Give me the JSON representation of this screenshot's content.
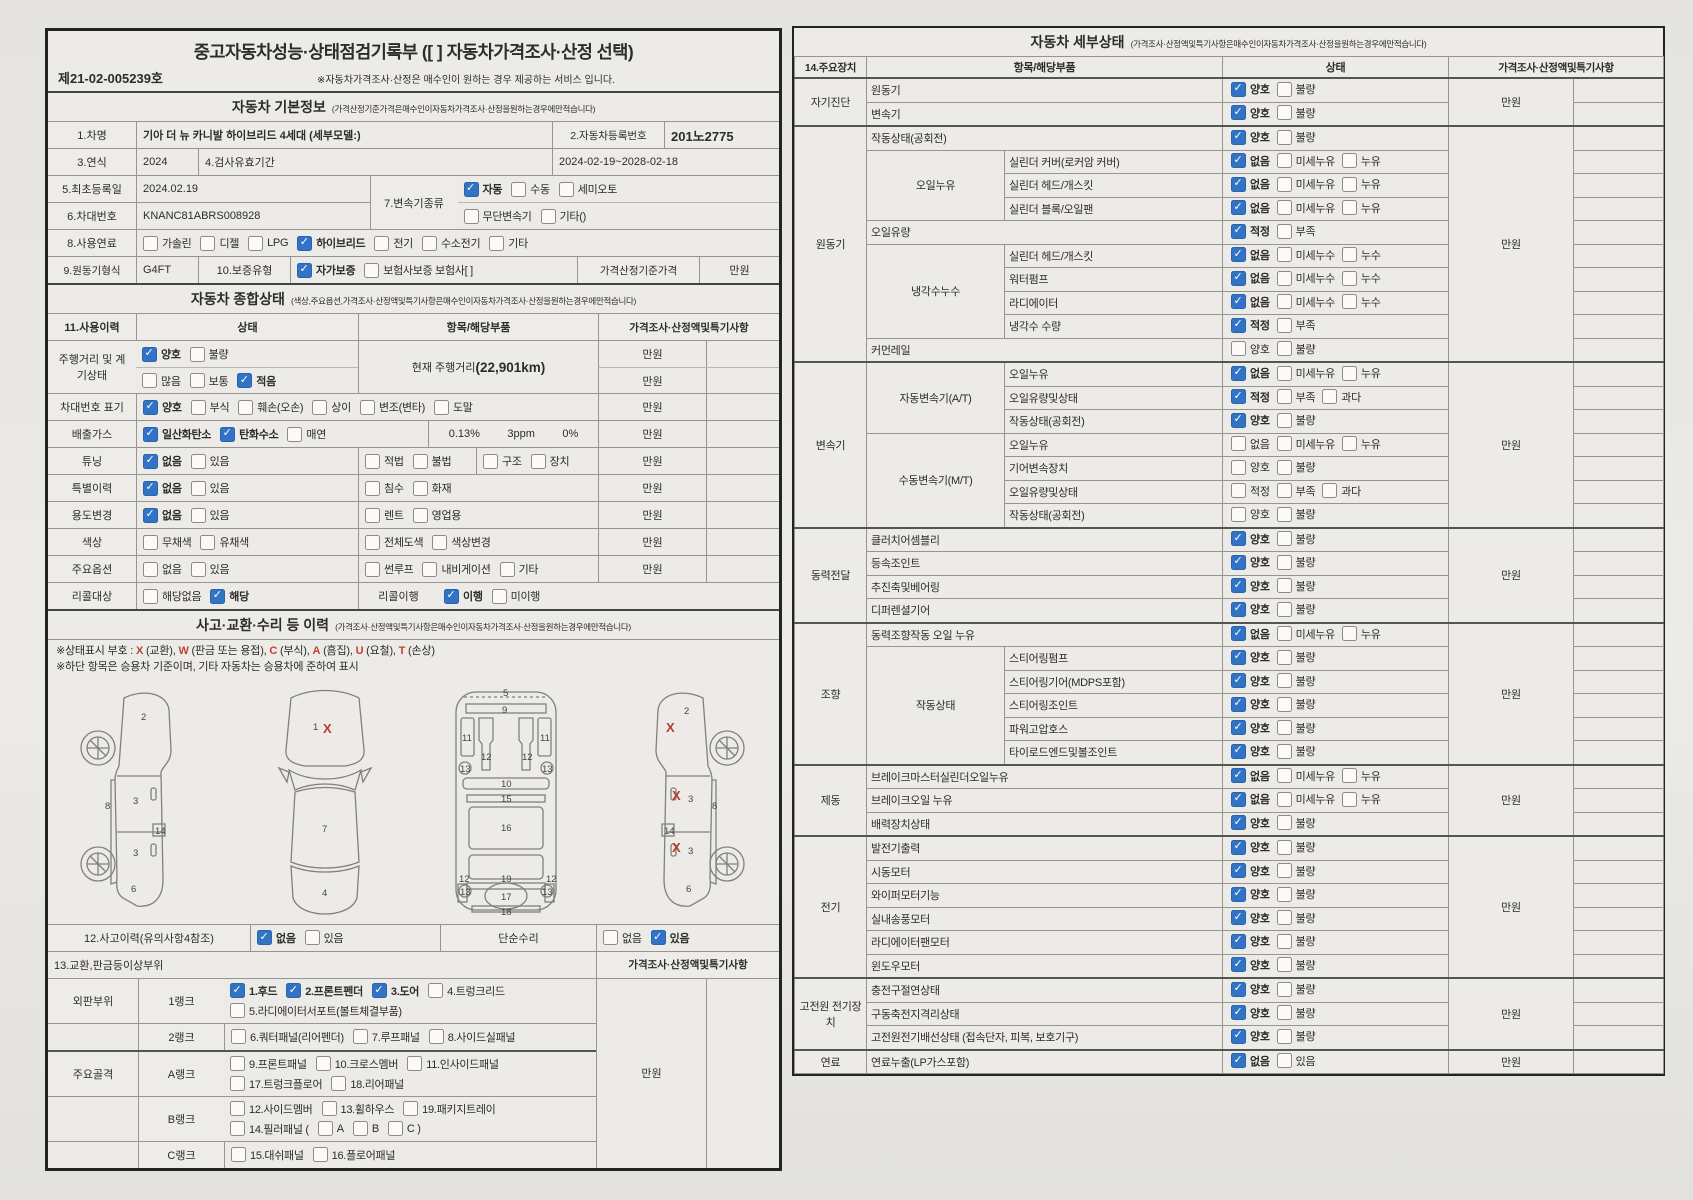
{
  "units": {
    "manwon": "만원"
  },
  "doc": {
    "title": "중고자동차성능·상태점검기록부 ([ ] 자동차가격조사·산정 선택)",
    "doc_no": "제21-02-005239호",
    "service_note": "※자동차가격조사·산정은 매수인이 원하는 경우 제공하는 서비스 입니다."
  },
  "basic": {
    "title": "자동차 기본정보",
    "note": "(가격산정기준가격은매수인이자동차가격조사·산정을원하는경우에만적습니다)",
    "car_name_label": "1.차명",
    "car_name": "기아 더 뉴 카니발 하이브리드 4세대 (세부모델:)",
    "reg_label": "2.자동차등록번호",
    "reg_no": "201노2775",
    "year_label": "3.연식",
    "year": "2024",
    "insp_label": "4.검사유효기간",
    "insp_value": "2024-02-19~2028-02-18",
    "first_label": "5.최초등록일",
    "first_date": "2024.02.19",
    "vin_label": "6.차대번호",
    "vin": "KNANC81ABRS008928",
    "trans_label": "7.변속기종류",
    "trans_opts1": [
      [
        "자동",
        1
      ],
      [
        "수동",
        0
      ],
      [
        "세미오토",
        0
      ]
    ],
    "trans_opts2": [
      [
        "무단변속기",
        0
      ],
      [
        "기타()",
        0
      ]
    ],
    "fuel_label": "8.사용연료",
    "fuel_opts": [
      [
        "가솔린",
        0
      ],
      [
        "디젤",
        0
      ],
      [
        "LPG",
        0
      ],
      [
        "하이브리드",
        1
      ],
      [
        "전기",
        0
      ],
      [
        "수소전기",
        0
      ],
      [
        "기타",
        0
      ]
    ],
    "engine_label": "9.원동기형식",
    "engine_type": "G4FT",
    "warranty_label": "10.보증유형",
    "warranty_opts": [
      [
        "자가보증",
        1
      ],
      [
        "보험사보증 보험사[ ]",
        0
      ]
    ],
    "price_label": "가격산정기준가격"
  },
  "overall": {
    "title": "자동차 종합상태",
    "note": "(색상,주요옵션,가격조사·산정액및특기사항은매수인이자동차가격조사·산정을원하는경우에만적습니다)",
    "col_usage": "11.사용이력",
    "col_state": "상태",
    "col_item": "항목/해당부품",
    "col_price": "가격조사·산정액및특기사항",
    "mileage_label": "주행거리 및 계기상태",
    "mileage_opts1": [
      [
        "양호",
        1
      ],
      [
        "불량",
        0
      ]
    ],
    "mileage_opts2": [
      [
        "많음",
        0
      ],
      [
        "보통",
        0
      ],
      [
        "적음",
        1
      ]
    ],
    "mileage_item_label": "현재 주행거리",
    "mileage_value": "(22,901km)",
    "vinmark_label": "차대번호 표기",
    "vinmark_opts": [
      [
        "양호",
        1
      ],
      [
        "부식",
        0
      ],
      [
        "훼손(오손)",
        0
      ],
      [
        "상이",
        0
      ],
      [
        "변조(변타)",
        0
      ],
      [
        "도말",
        0
      ]
    ],
    "emission_label": "배출가스",
    "emission_opts": [
      [
        "일산화탄소",
        1
      ],
      [
        "탄화수소",
        1
      ],
      [
        "매연",
        0
      ]
    ],
    "emission_co": "0.13%",
    "emission_hc": "3ppm",
    "emission_smoke": "0%",
    "tuning_label": "튜닝",
    "tuning_opts": [
      [
        "없음",
        1
      ],
      [
        "있음",
        0
      ]
    ],
    "tuning_opts2": [
      [
        "적법",
        0
      ],
      [
        "불법",
        0
      ]
    ],
    "tuning_opts3": [
      [
        "구조",
        0
      ],
      [
        "장치",
        0
      ]
    ],
    "special_label": "특별이력",
    "special_opts": [
      [
        "없음",
        1
      ],
      [
        "있음",
        0
      ]
    ],
    "special_opts2": [
      [
        "침수",
        0
      ],
      [
        "화재",
        0
      ]
    ],
    "usage_label": "용도변경",
    "usage_opts": [
      [
        "없음",
        1
      ],
      [
        "있음",
        0
      ]
    ],
    "usage_opts2": [
      [
        "렌트",
        0
      ],
      [
        "영업용",
        0
      ]
    ],
    "color_label": "색상",
    "color_opts": [
      [
        "무채색",
        0
      ],
      [
        "유채색",
        0
      ]
    ],
    "color_opts2": [
      [
        "전체도색",
        0
      ],
      [
        "색상변경",
        0
      ]
    ],
    "option_label": "주요옵션",
    "option_opts": [
      [
        "없음",
        0
      ],
      [
        "있음",
        0
      ]
    ],
    "option_opts2": [
      [
        "썬루프",
        0
      ],
      [
        "내비게이션",
        0
      ],
      [
        "기타",
        0
      ]
    ],
    "recall_label": "리콜대상",
    "recall_opts": [
      [
        "해당없음",
        0
      ],
      [
        "해당",
        1
      ]
    ],
    "recall_exec_label": "리콜이행",
    "recall_exec_opts": [
      [
        "이행",
        1
      ],
      [
        "미이행",
        0
      ]
    ]
  },
  "accident": {
    "title": "사고·교환·수리 등 이력",
    "note": "(가격조사·산정액및특기사항은매수인이자동차가격조사·산정을원하는경우에만적습니다)",
    "legend": [
      [
        "※상태표시 부호 : ",
        0
      ],
      [
        "X",
        1
      ],
      [
        " (교환), ",
        0
      ],
      [
        "W",
        1
      ],
      [
        " (판금 또는 용접), ",
        0
      ],
      [
        "C",
        1
      ],
      [
        " (부식), ",
        0
      ],
      [
        "A",
        1
      ],
      [
        " (흠집), ",
        0
      ],
      [
        "U",
        1
      ],
      [
        " (요철), ",
        0
      ],
      [
        "T",
        1
      ],
      [
        " (손상)",
        0
      ]
    ],
    "legend2": "※하단 항목은 승용차 기준이며, 기타 자동차는 승용차에 준하여 표시",
    "diagrams": {
      "side_left": {
        "n2": "2",
        "n8": "8",
        "n3a": "3",
        "n14": "14",
        "n3b": "3",
        "n6": "6"
      },
      "top": {
        "n1": "1",
        "x": "X",
        "n7": "7",
        "n4": "4"
      },
      "bottom": {
        "n5": "5",
        "n9": "9",
        "n11a": "11",
        "n11b": "11",
        "n12a": "12",
        "n12b": "12",
        "n13a": "13",
        "n13b": "13",
        "n10": "10",
        "n15": "15",
        "n16": "16",
        "n19": "19",
        "n13c": "13",
        "n13d": "13",
        "n17": "17",
        "n12c": "12",
        "n12d": "12",
        "n18": "18"
      },
      "side_right": {
        "n2": "2",
        "x1": "X",
        "x2": "X",
        "n3a": "3",
        "n14": "14",
        "x3": "X",
        "n3b": "3",
        "n8": "8",
        "n6": "6"
      }
    },
    "accident_label": "12.사고이력(유의사항4참조)",
    "accident_opts": [
      [
        "없음",
        1
      ],
      [
        "있음",
        0
      ]
    ],
    "repair_label": "단순수리",
    "repair_opts": [
      [
        "없음",
        0
      ],
      [
        "있음",
        1
      ]
    ],
    "exchange_label": "13.교환,판금등이상부위",
    "price_header": "가격조사·산정액및특기사항",
    "outer_label": "외판부위",
    "frame_label": "주요골격",
    "rank1_label": "1랭크",
    "rank1_opts": [
      [
        "1.후드",
        1
      ],
      [
        "2.프론트펜더",
        1
      ],
      [
        "3.도어",
        1
      ],
      [
        "4.트렁크리드",
        0
      ]
    ],
    "rank1_opts2": [
      [
        "5.라디에이터서포트(볼트체결부품)",
        0
      ]
    ],
    "rank2_label": "2랭크",
    "rank2_opts": [
      [
        "6.쿼터패널(리어펜더)",
        0
      ],
      [
        "7.루프패널",
        0
      ],
      [
        "8.사이드실패널",
        0
      ]
    ],
    "rankA_label": "A랭크",
    "rankA_opts": [
      [
        "9.프론트패널",
        0
      ],
      [
        "10.크로스멤버",
        0
      ],
      [
        "11.인사이드패널",
        0
      ]
    ],
    "rankA_opts2": [
      [
        "17.트렁크플로어",
        0
      ],
      [
        "18.리어패널",
        0
      ]
    ],
    "rankB_label": "B랭크",
    "rankB_opts": [
      [
        "12.사이드멤버",
        0
      ],
      [
        "13.휠하우스",
        0
      ],
      [
        "19.패키지트레이",
        0
      ]
    ],
    "rankB_opts2": [
      [
        "14.필러패널 (",
        0
      ],
      [
        "A",
        0
      ],
      [
        "B",
        0
      ],
      [
        "C )",
        0
      ]
    ],
    "rankC_label": "C랭크",
    "rankC_opts": [
      [
        "15.대쉬패널",
        0
      ],
      [
        "16.플로어패널",
        0
      ]
    ]
  },
  "detail": {
    "title": "자동차 세부상태",
    "note": "(가격조사·산정액및특기사항은매수인이자동차가격조사·산정을원하는경우에만적습니다)",
    "col_device": "14.주요장치",
    "col_item": "항목/해당부품",
    "col_state": "상태",
    "col_price": "가격조사·산정액및특기사항",
    "sections": [
      {
        "group": "자기진단",
        "unit": "만원",
        "rows": [
          [
            "",
            "원동기",
            [
              [
                "양호",
                1
              ],
              [
                "불량",
                0
              ]
            ]
          ],
          [
            "",
            "변속기",
            [
              [
                "양호",
                1
              ],
              [
                "불량",
                0
              ]
            ]
          ]
        ]
      },
      {
        "group": "원동기",
        "unit": "만원",
        "rows": [
          [
            "",
            "작동상태(공회전)",
            [
              [
                "양호",
                1
              ],
              [
                "불량",
                0
              ]
            ]
          ],
          [
            "오일누유",
            "실린더 커버(로커암 커버)",
            [
              [
                "없음",
                1
              ],
              [
                "미세누유",
                0
              ],
              [
                "누유",
                0
              ]
            ]
          ],
          [
            "오일누유",
            "실린더 헤드/개스킷",
            [
              [
                "없음",
                1
              ],
              [
                "미세누유",
                0
              ],
              [
                "누유",
                0
              ]
            ]
          ],
          [
            "오일누유",
            "실린더 블록/오일팬",
            [
              [
                "없음",
                1
              ],
              [
                "미세누유",
                0
              ],
              [
                "누유",
                0
              ]
            ]
          ],
          [
            "",
            "오일유량",
            [
              [
                "적정",
                1
              ],
              [
                "부족",
                0
              ]
            ]
          ],
          [
            "냉각수누수",
            "실린더 헤드/개스킷",
            [
              [
                "없음",
                1
              ],
              [
                "미세누수",
                0
              ],
              [
                "누수",
                0
              ]
            ]
          ],
          [
            "냉각수누수",
            "워터펌프",
            [
              [
                "없음",
                1
              ],
              [
                "미세누수",
                0
              ],
              [
                "누수",
                0
              ]
            ]
          ],
          [
            "냉각수누수",
            "라디에이터",
            [
              [
                "없음",
                1
              ],
              [
                "미세누수",
                0
              ],
              [
                "누수",
                0
              ]
            ]
          ],
          [
            "냉각수누수",
            "냉각수 수량",
            [
              [
                "적정",
                1
              ],
              [
                "부족",
                0
              ]
            ]
          ],
          [
            "",
            "커먼레일",
            [
              [
                "양호",
                0
              ],
              [
                "불량",
                0
              ]
            ]
          ]
        ]
      },
      {
        "group": "변속기",
        "unit": "만원",
        "rows": [
          [
            "자동변속기(A/T)",
            "오일누유",
            [
              [
                "없음",
                1
              ],
              [
                "미세누유",
                0
              ],
              [
                "누유",
                0
              ]
            ]
          ],
          [
            "자동변속기(A/T)",
            "오일유량및상태",
            [
              [
                "적정",
                1
              ],
              [
                "부족",
                0
              ],
              [
                "과다",
                0
              ]
            ]
          ],
          [
            "자동변속기(A/T)",
            "작동상태(공회전)",
            [
              [
                "양호",
                1
              ],
              [
                "불량",
                0
              ]
            ]
          ],
          [
            "수동변속기(M/T)",
            "오일누유",
            [
              [
                "없음",
                0
              ],
              [
                "미세누유",
                0
              ],
              [
                "누유",
                0
              ]
            ]
          ],
          [
            "수동변속기(M/T)",
            "기어변속장치",
            [
              [
                "양호",
                0
              ],
              [
                "불량",
                0
              ]
            ]
          ],
          [
            "수동변속기(M/T)",
            "오일유량및상태",
            [
              [
                "적정",
                0
              ],
              [
                "부족",
                0
              ],
              [
                "과다",
                0
              ]
            ]
          ],
          [
            "수동변속기(M/T)",
            "작동상태(공회전)",
            [
              [
                "양호",
                0
              ],
              [
                "불량",
                0
              ]
            ]
          ]
        ]
      },
      {
        "group": "동력전달",
        "unit": "만원",
        "rows": [
          [
            "",
            "클러치어셈블리",
            [
              [
                "양호",
                1
              ],
              [
                "불량",
                0
              ]
            ]
          ],
          [
            "",
            "등속조인트",
            [
              [
                "양호",
                1
              ],
              [
                "불량",
                0
              ]
            ]
          ],
          [
            "",
            "추진축및베어링",
            [
              [
                "양호",
                1
              ],
              [
                "불량",
                0
              ]
            ]
          ],
          [
            "",
            "디퍼렌셜기어",
            [
              [
                "양호",
                1
              ],
              [
                "불량",
                0
              ]
            ]
          ]
        ]
      },
      {
        "group": "조향",
        "unit": "만원",
        "rows": [
          [
            "",
            "동력조향작동 오일 누유",
            [
              [
                "없음",
                1
              ],
              [
                "미세누유",
                0
              ],
              [
                "누유",
                0
              ]
            ]
          ],
          [
            "작동상태",
            "스티어링펌프",
            [
              [
                "양호",
                1
              ],
              [
                "불량",
                0
              ]
            ]
          ],
          [
            "작동상태",
            "스티어링기어(MDPS포함)",
            [
              [
                "양호",
                1
              ],
              [
                "불량",
                0
              ]
            ]
          ],
          [
            "작동상태",
            "스티어링조인트",
            [
              [
                "양호",
                1
              ],
              [
                "불량",
                0
              ]
            ]
          ],
          [
            "작동상태",
            "파워고압호스",
            [
              [
                "양호",
                1
              ],
              [
                "불량",
                0
              ]
            ]
          ],
          [
            "작동상태",
            "타이로드엔드및볼조인트",
            [
              [
                "양호",
                1
              ],
              [
                "불량",
                0
              ]
            ]
          ]
        ]
      },
      {
        "group": "제동",
        "unit": "만원",
        "rows": [
          [
            "",
            "브레이크마스터실린더오일누유",
            [
              [
                "없음",
                1
              ],
              [
                "미세누유",
                0
              ],
              [
                "누유",
                0
              ]
            ]
          ],
          [
            "",
            "브레이크오일 누유",
            [
              [
                "없음",
                1
              ],
              [
                "미세누유",
                0
              ],
              [
                "누유",
                0
              ]
            ]
          ],
          [
            "",
            "배력장치상태",
            [
              [
                "양호",
                1
              ],
              [
                "불량",
                0
              ]
            ]
          ]
        ]
      },
      {
        "group": "전기",
        "unit": "만원",
        "rows": [
          [
            "",
            "발전기출력",
            [
              [
                "양호",
                1
              ],
              [
                "불량",
                0
              ]
            ]
          ],
          [
            "",
            "시동모터",
            [
              [
                "양호",
                1
              ],
              [
                "불량",
                0
              ]
            ]
          ],
          [
            "",
            "와이퍼모터기능",
            [
              [
                "양호",
                1
              ],
              [
                "불량",
                0
              ]
            ]
          ],
          [
            "",
            "실내송풍모터",
            [
              [
                "양호",
                1
              ],
              [
                "불량",
                0
              ]
            ]
          ],
          [
            "",
            "라디에이터팬모터",
            [
              [
                "양호",
                1
              ],
              [
                "불량",
                0
              ]
            ]
          ],
          [
            "",
            "윈도우모터",
            [
              [
                "양호",
                1
              ],
              [
                "불량",
                0
              ]
            ]
          ]
        ]
      },
      {
        "group": "고전원 전기장치",
        "unit": "만원",
        "rows": [
          [
            "",
            "충전구절연상태",
            [
              [
                "양호",
                1
              ],
              [
                "불량",
                0
              ]
            ]
          ],
          [
            "",
            "구동축전지격리상태",
            [
              [
                "양호",
                1
              ],
              [
                "불량",
                0
              ]
            ]
          ],
          [
            "",
            "고전원전기배선상태 (접속단자, 피복, 보호기구)",
            [
              [
                "양호",
                1
              ],
              [
                "불량",
                0
              ]
            ]
          ]
        ]
      },
      {
        "group": "연료",
        "unit": "만원",
        "rows": [
          [
            "",
            "연료누출(LP가스포함)",
            [
              [
                "없음",
                1
              ],
              [
                "있음",
                0
              ]
            ]
          ]
        ]
      }
    ]
  }
}
